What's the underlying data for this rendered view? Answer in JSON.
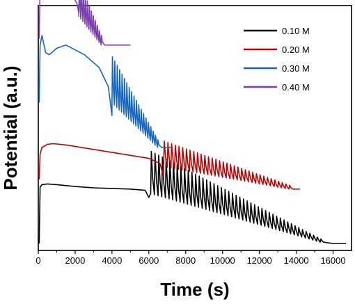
{
  "chart_data": {
    "type": "line",
    "title": "",
    "xlabel": "Time (s)",
    "ylabel": "Potential (a.u.)",
    "xlim": [
      0,
      17000
    ],
    "xticks": [
      "0",
      "2000",
      "4000",
      "6000",
      "8000",
      "10000",
      "12000",
      "14000",
      "16000"
    ],
    "legend_position": "top-right",
    "series": [
      {
        "name": "0.10 M",
        "color": "#000000",
        "offset": 0.0,
        "x": [
          50,
          100,
          200,
          500,
          1000,
          2000,
          3000,
          4000,
          5000,
          5800,
          6000
        ],
        "y": [
          0.0,
          0.88,
          0.92,
          0.93,
          0.92,
          0.89,
          0.87,
          0.86,
          0.85,
          0.83,
          0.72
        ],
        "oscillation": {
          "start": 6100,
          "end": 15500,
          "period": 200,
          "amp_start": 0.66,
          "amp_end": 0.05,
          "base_start": 0.78,
          "base_end": 0.02
        },
        "tail": {
          "x": [
            15500,
            16000,
            16700
          ],
          "y": [
            0.02,
            0.0,
            0.0
          ]
        }
      },
      {
        "name": "0.20 M",
        "color": "#c00000",
        "offset": 1.0,
        "x": [
          50,
          100,
          200,
          500,
          800,
          1500,
          3000,
          4500,
          6000,
          6600,
          6800
        ],
        "y": [
          0.0,
          0.4,
          0.5,
          0.55,
          0.56,
          0.54,
          0.47,
          0.4,
          0.33,
          0.25,
          0.05
        ],
        "oscillation": {
          "start": 6800,
          "end": 13800,
          "period": 200,
          "amp_start": 0.4,
          "amp_end": 0.06,
          "base_start": 0.2,
          "base_end": -0.15
        },
        "tail": {
          "x": [
            13800,
            14200
          ],
          "y": [
            -0.15,
            -0.15
          ]
        }
      },
      {
        "name": "0.30 M",
        "color": "#1565c0",
        "offset": 2.0,
        "x": [
          50,
          100,
          200,
          400,
          600,
          1000,
          1500,
          2500,
          3300,
          3800,
          4000
        ],
        "y": [
          0.2,
          1.1,
          1.25,
          0.98,
          0.95,
          1.05,
          1.1,
          0.95,
          0.75,
          0.45,
          0.0
        ],
        "oscillation": {
          "start": 4000,
          "end": 6700,
          "period": 130,
          "amp_start": 0.72,
          "amp_end": 0.12,
          "base_start": 0.2,
          "base_end": -0.5
        },
        "tail": {
          "x": [
            6700,
            7200
          ],
          "y": [
            -0.5,
            -0.5
          ]
        }
      },
      {
        "name": "0.40 M",
        "color": "#7b3fb0",
        "offset": 3.0,
        "x": [
          50,
          100,
          250,
          500,
          800,
          1200,
          1600,
          1900,
          2100,
          2200
        ],
        "y": [
          0.2,
          1.0,
          1.3,
          1.05,
          1.1,
          1.05,
          0.95,
          0.85,
          0.75,
          0.6
        ],
        "oscillation": {
          "start": 2200,
          "end": 3600,
          "period": 110,
          "amp_start": 0.55,
          "amp_end": 0.15,
          "base_start": 0.55,
          "base_end": 0.1
        },
        "tail": {
          "x": [
            3600,
            5000
          ],
          "y": [
            0.1,
            0.1
          ]
        }
      }
    ]
  }
}
